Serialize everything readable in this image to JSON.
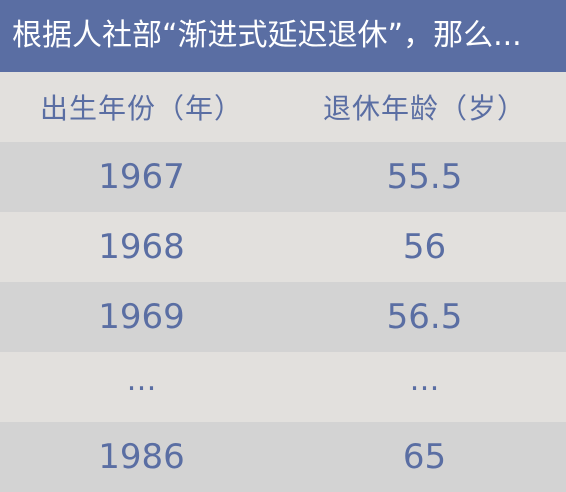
{
  "title": "根据人社部“渐进式延迟退休”，那么...",
  "table": {
    "headers": [
      "出生年份（年）",
      "退休年龄（岁）"
    ],
    "rows": [
      {
        "birth_year": "1967",
        "retirement_age": "55.5"
      },
      {
        "birth_year": "1968",
        "retirement_age": "56"
      },
      {
        "birth_year": "1969",
        "retirement_age": "56.5"
      },
      {
        "birth_year": "…",
        "retirement_age": "…"
      },
      {
        "birth_year": "1986",
        "retirement_age": "65"
      }
    ]
  },
  "colors": {
    "title_background": "#5a6ea3",
    "text": "#5a6ea3",
    "row_light": "#e2e0dd",
    "row_dark": "#d3d3d3"
  }
}
